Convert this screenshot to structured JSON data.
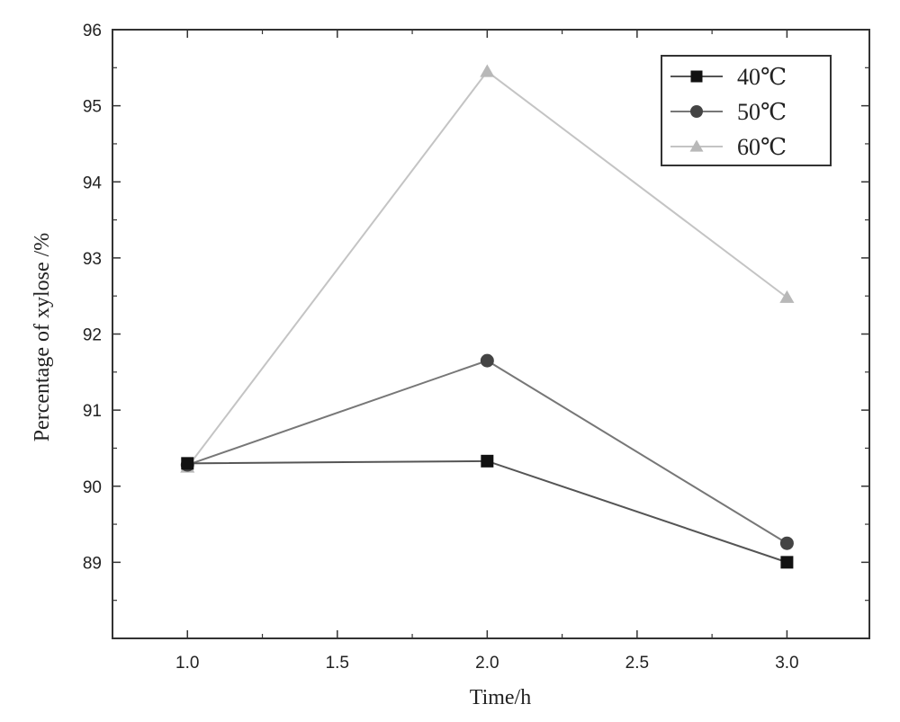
{
  "chart_data": {
    "type": "line",
    "title": "",
    "xlabel": "Time/h",
    "ylabel": "Percentage of xylose /%",
    "xlim": [
      0.75,
      3.275
    ],
    "ylim": [
      88,
      96
    ],
    "x_ticks": [
      "1.0",
      "1.5",
      "2.0",
      "2.5",
      "3.0"
    ],
    "y_ticks": [
      "89",
      "90",
      "91",
      "92",
      "93",
      "94",
      "95",
      "96"
    ],
    "grid": false,
    "legend_position": "top-right",
    "x": [
      1.0,
      2.0,
      3.0
    ],
    "series": [
      {
        "name": "40℃",
        "marker": "square",
        "color": "#111111",
        "line_color": "#555555",
        "values": [
          90.3,
          90.33,
          89.0
        ]
      },
      {
        "name": "50℃",
        "marker": "circle",
        "color": "#444444",
        "line_color": "#777777",
        "values": [
          90.28,
          91.65,
          89.25
        ]
      },
      {
        "name": "60℃",
        "marker": "triangle",
        "color": "#b8b8b8",
        "line_color": "#c4c4c4",
        "values": [
          90.25,
          95.45,
          92.48
        ]
      }
    ]
  }
}
